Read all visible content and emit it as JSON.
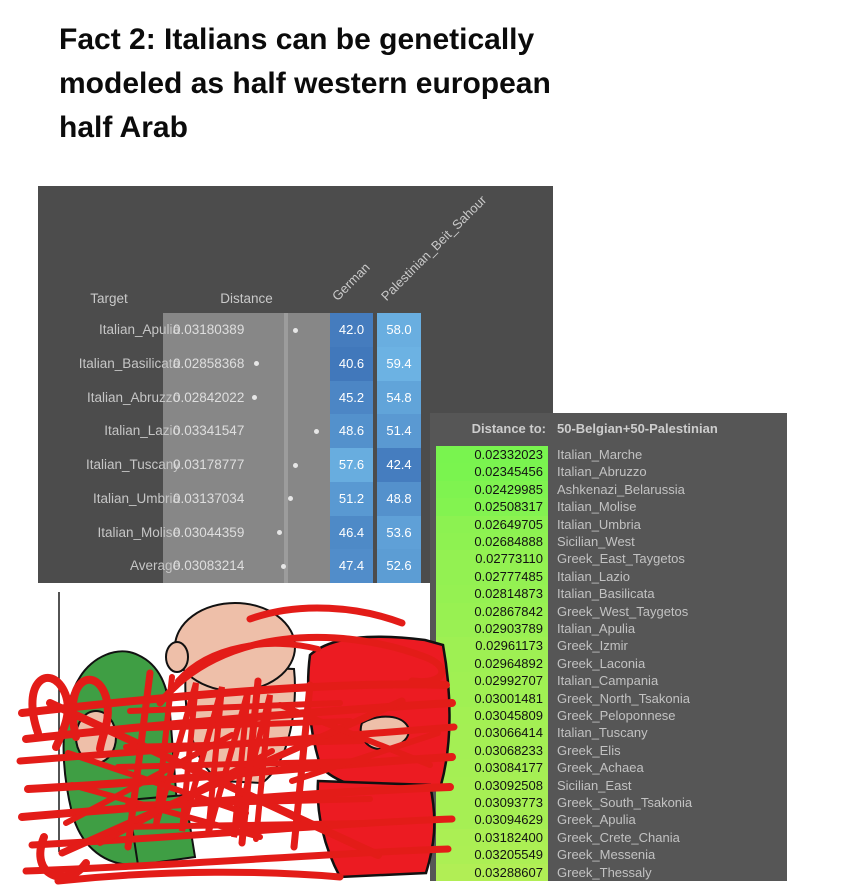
{
  "title": {
    "text": "Fact 2: Italians can be genetically modeled as half western european half Arab",
    "lines": [
      "Fact 2: Italians can be genetically",
      "modeled as half western european",
      "half Arab"
    ]
  },
  "colors": {
    "page_bg": "#ffffff",
    "model_table_bg": "#4c4c4c",
    "distance_strip_bg": "#878787",
    "dist_table_bg": "#565656",
    "scribble_red": "#e31c18",
    "cartoon_red": "#ec1b22",
    "cartoon_green": "#3f9e44",
    "cartoon_skin": "#eebfa9"
  },
  "chart_data": [
    {
      "type": "table",
      "name": "admixture-model-table",
      "columns": [
        "Target",
        "Distance",
        "German",
        "Palestinian_Beit_Sahour"
      ],
      "rows": [
        {
          "target": "Italian_Apulia",
          "distance": "0.03180389",
          "german": "42.0",
          "palestinian": "58.0"
        },
        {
          "target": "Italian_Basilicata",
          "distance": "0.02858368",
          "german": "40.6",
          "palestinian": "59.4"
        },
        {
          "target": "Italian_Abruzzo",
          "distance": "0.02842022",
          "german": "45.2",
          "palestinian": "54.8"
        },
        {
          "target": "Italian_Lazio",
          "distance": "0.03341547",
          "german": "48.6",
          "palestinian": "51.4"
        },
        {
          "target": "Italian_Tuscany",
          "distance": "0.03178777",
          "german": "57.6",
          "palestinian": "42.4"
        },
        {
          "target": "Italian_Umbria",
          "distance": "0.03137034",
          "german": "51.2",
          "palestinian": "48.8"
        },
        {
          "target": "Italian_Molise",
          "distance": "0.03044359",
          "german": "46.4",
          "palestinian": "53.6"
        },
        {
          "target": "Average",
          "distance": "0.03083214",
          "german": "47.4",
          "palestinian": "52.6"
        }
      ],
      "style": {
        "cell_min_value": 40,
        "cell_max_value": 60,
        "cell_min_color": "#4076ba",
        "cell_max_color": "#6db4e4",
        "dot_min": "0.02842022",
        "dot_max": "0.03341547"
      }
    },
    {
      "type": "table",
      "name": "distance-list",
      "header": {
        "label": "Distance to:",
        "model": "50-Belgian+50-Palestinian"
      },
      "style": {
        "gradient_top": "#79f44f",
        "gradient_bottom": "#b1ee55",
        "value_min": "0.02332023",
        "value_max": "0.03288607"
      },
      "rows": [
        {
          "value": "0.02332023",
          "label": "Italian_Marche"
        },
        {
          "value": "0.02345456",
          "label": "Italian_Abruzzo"
        },
        {
          "value": "0.02429985",
          "label": "Ashkenazi_Belarussia"
        },
        {
          "value": "0.02508317",
          "label": "Italian_Molise"
        },
        {
          "value": "0.02649705",
          "label": "Italian_Umbria"
        },
        {
          "value": "0.02684888",
          "label": "Sicilian_West"
        },
        {
          "value": "0.02773110",
          "label": "Greek_East_Taygetos"
        },
        {
          "value": "0.02777485",
          "label": "Italian_Lazio"
        },
        {
          "value": "0.02814873",
          "label": "Italian_Basilicata"
        },
        {
          "value": "0.02867842",
          "label": "Greek_West_Taygetos"
        },
        {
          "value": "0.02903789",
          "label": "Italian_Apulia"
        },
        {
          "value": "0.02961173",
          "label": "Greek_Izmir"
        },
        {
          "value": "0.02964892",
          "label": "Greek_Laconia"
        },
        {
          "value": "0.02992707",
          "label": "Italian_Campania"
        },
        {
          "value": "0.03001481",
          "label": "Greek_North_Tsakonia"
        },
        {
          "value": "0.03045809",
          "label": "Greek_Peloponnese"
        },
        {
          "value": "0.03066414",
          "label": "Italian_Tuscany"
        },
        {
          "value": "0.03068233",
          "label": "Greek_Elis"
        },
        {
          "value": "0.03084177",
          "label": "Greek_Achaea"
        },
        {
          "value": "0.03092508",
          "label": "Sicilian_East"
        },
        {
          "value": "0.03093773",
          "label": "Greek_South_Tsakonia"
        },
        {
          "value": "0.03094629",
          "label": "Greek_Apulia"
        },
        {
          "value": "0.03182400",
          "label": "Greek_Crete_Chania"
        },
        {
          "value": "0.03205549",
          "label": "Greek_Messenia"
        },
        {
          "value": "0.03288607",
          "label": "Greek_Thessaly"
        }
      ]
    }
  ]
}
